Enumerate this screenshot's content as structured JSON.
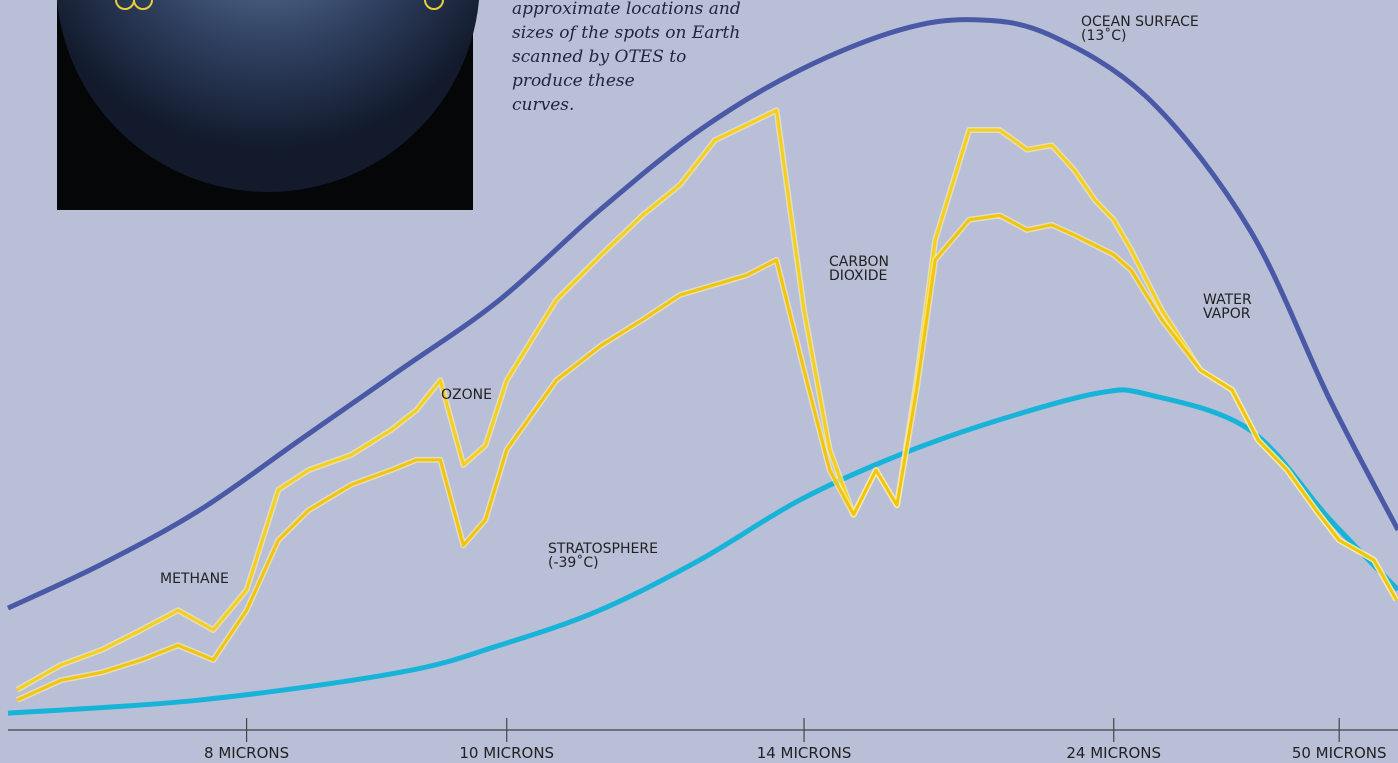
{
  "chart_data": {
    "type": "line",
    "caption": [
      "approximate locations and",
      "sizes of the spots on Earth",
      "scanned by OTES to",
      "produce these",
      "curves."
    ],
    "x_scale": "reciprocal",
    "xlim": [
      6.76,
      69.7
    ],
    "ylim": [
      0,
      100
    ],
    "xticks": [
      {
        "value": 8,
        "label": "8 MICRONS"
      },
      {
        "value": 10,
        "label": "10 MICRONS"
      },
      {
        "value": 14,
        "label": "14 MICRONS"
      },
      {
        "value": 24,
        "label": "24 MICRONS"
      },
      {
        "value": 50,
        "label": "50 MICRONS"
      }
    ],
    "annotations": [
      {
        "lines": [
          "OCEAN SURFACE",
          "(13˚C)"
        ]
      },
      {
        "lines": [
          "STRATOSPHERE",
          "(-39˚C)"
        ]
      },
      {
        "lines": [
          "CARBON",
          "DIOXIDE"
        ]
      },
      {
        "lines": [
          "WATER",
          "VAPOR"
        ]
      },
      {
        "lines": [
          "OZONE"
        ]
      },
      {
        "lines": [
          "METHANE"
        ]
      }
    ],
    "series": [
      {
        "color": "#4a59a6",
        "x": [
          6.76,
          7.19,
          7.72,
          8.34,
          9.07,
          9.93,
          10.98,
          12.28,
          13.92,
          16.07,
          18.18,
          20.92,
          26.18,
          34.99,
          47.89,
          69.7
        ],
        "values": [
          16.7,
          22.6,
          30.1,
          39.7,
          49.3,
          58.9,
          71.2,
          82.2,
          90.4,
          95.9,
          97.3,
          95.2,
          86.3,
          68.5,
          45.2,
          27.4
        ]
      },
      {
        "color": "#17b3d9",
        "x": [
          6.76,
          7.72,
          9.07,
          9.93,
          10.98,
          12.28,
          13.92,
          16.07,
          19.0,
          23.26,
          26.18,
          34.99,
          47.89,
          69.7
        ],
        "values": [
          2.3,
          4.1,
          7.9,
          11.6,
          16.4,
          23.3,
          31.5,
          37.7,
          42.5,
          46.2,
          45.9,
          41.1,
          28.8,
          19.2
        ]
      },
      {
        "color": "#f6cf1c",
        "x": [
          6.8,
          7,
          7.2,
          7.4,
          7.6,
          7.8,
          8,
          8.2,
          8.4,
          8.7,
          9,
          9.2,
          9.4,
          9.6,
          9.8,
          10,
          10.5,
          11,
          11.5,
          12,
          12.5,
          13,
          13.5,
          14,
          14.5,
          15,
          15.5,
          16,
          16.5,
          17,
          18,
          19,
          20,
          21,
          22,
          23,
          24,
          25,
          27,
          30,
          33,
          36,
          40,
          45,
          50,
          60,
          69
        ],
        "values": [
          5.5,
          8.9,
          11.0,
          13.7,
          16.4,
          13.7,
          19.2,
          32.9,
          35.6,
          37.7,
          41.1,
          43.8,
          47.9,
          36.3,
          39.0,
          47.9,
          58.9,
          65.1,
          70.5,
          74.7,
          80.8,
          82.9,
          84.9,
          57.5,
          38.4,
          29.5,
          35.6,
          30.8,
          47.9,
          67.1,
          82.2,
          82.2,
          79.5,
          80.1,
          76.7,
          72.6,
          69.9,
          65.8,
          57.5,
          49.3,
          46.6,
          39.7,
          35.6,
          30.1,
          26.0,
          23.3,
          17.8
        ]
      },
      {
        "color": "#f2c40c",
        "x": [
          6.8,
          7,
          7.2,
          7.4,
          7.6,
          7.8,
          8,
          8.2,
          8.4,
          8.7,
          9,
          9.2,
          9.4,
          9.6,
          9.8,
          10,
          10.5,
          11,
          11.5,
          12,
          12.5,
          13,
          13.5,
          14,
          14.5,
          15,
          15.5,
          16,
          16.5,
          17,
          18,
          19,
          20,
          21,
          22,
          23,
          24,
          25,
          27,
          30,
          33,
          36,
          40,
          45,
          50,
          60,
          69
        ],
        "values": [
          4.1,
          6.8,
          7.9,
          9.6,
          11.6,
          9.6,
          16.4,
          26.0,
          30.1,
          33.6,
          35.6,
          37.0,
          37.0,
          25.3,
          28.8,
          38.4,
          47.9,
          52.7,
          56.2,
          59.6,
          61.0,
          62.3,
          64.4,
          49.3,
          35.6,
          29.5,
          35.6,
          30.8,
          46.6,
          64.4,
          69.9,
          70.5,
          68.5,
          69.2,
          67.8,
          66.4,
          65.1,
          63.0,
          56.2,
          49.3,
          46.6,
          39.7,
          35.6,
          30.1,
          26.0,
          23.3,
          17.8
        ]
      }
    ]
  }
}
